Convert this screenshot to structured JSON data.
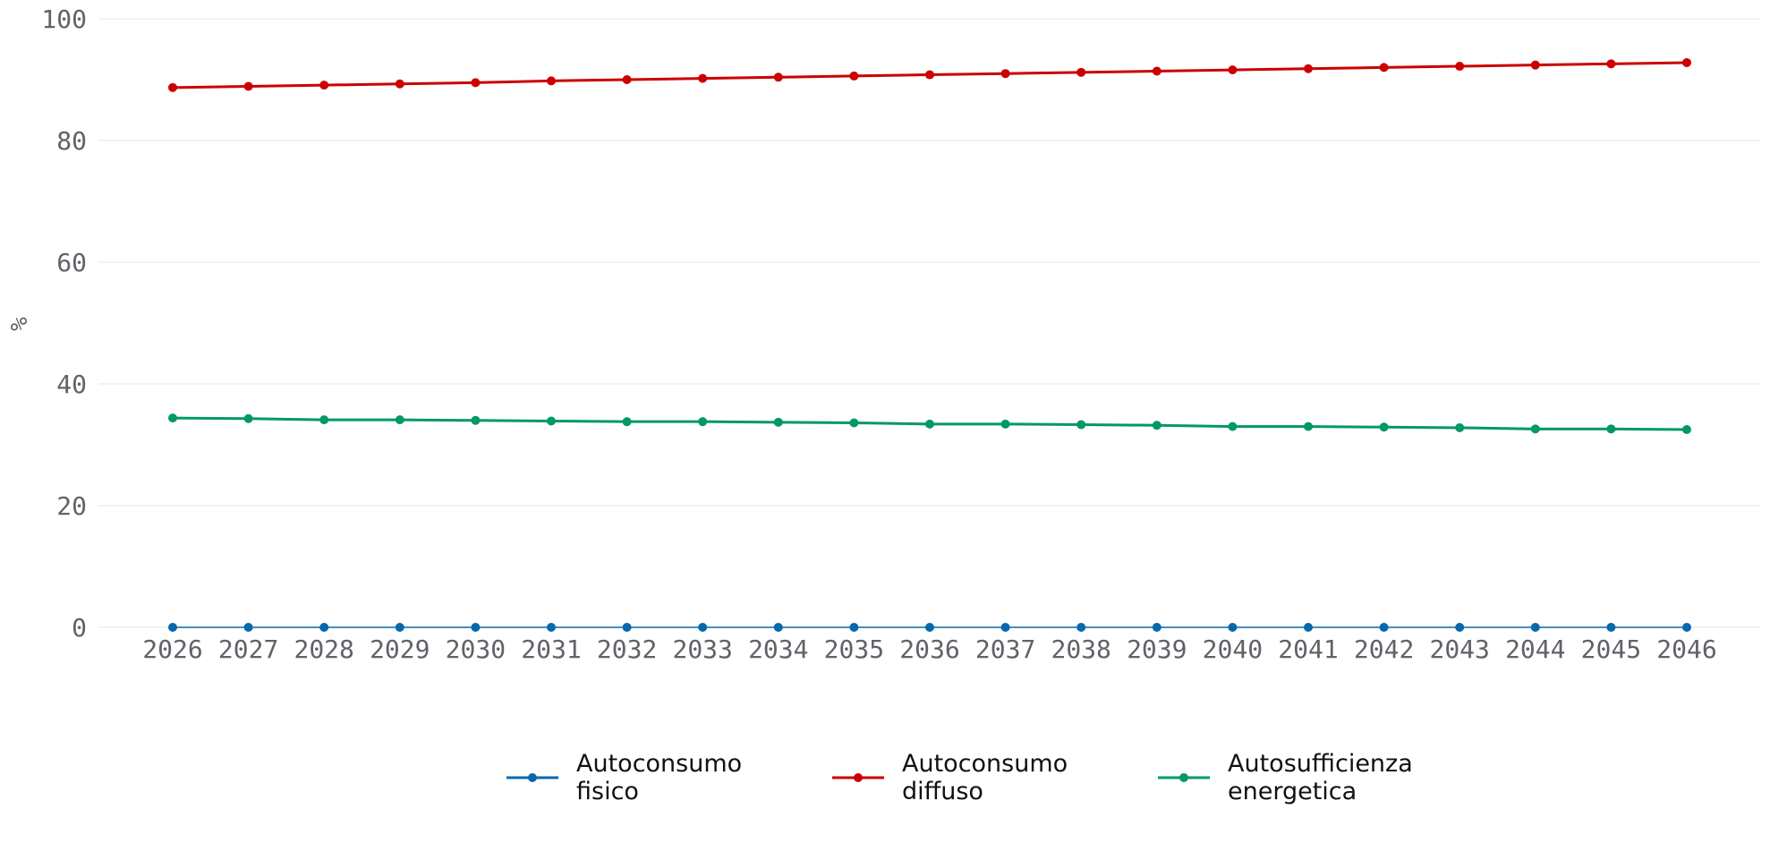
{
  "chart_data": {
    "type": "line",
    "title": "",
    "xlabel": "",
    "ylabel": "%",
    "ylim": [
      0,
      100
    ],
    "y_ticks": [
      "0",
      "20",
      "40",
      "60",
      "80",
      "100"
    ],
    "grid": "horizontal",
    "legend_position": "bottom-center",
    "x": [
      "2026",
      "2027",
      "2028",
      "2029",
      "2030",
      "2031",
      "2032",
      "2033",
      "2034",
      "2035",
      "2036",
      "2037",
      "2038",
      "2039",
      "2040",
      "2041",
      "2042",
      "2043",
      "2044",
      "2045",
      "2046"
    ],
    "series": [
      {
        "name": "Autoconsumo fisico",
        "color": "#0868ac",
        "values": [
          0,
          0,
          0,
          0,
          0,
          0,
          0,
          0,
          0,
          0,
          0,
          0,
          0,
          0,
          0,
          0,
          0,
          0,
          0,
          0,
          0
        ]
      },
      {
        "name": "Autoconsumo diffuso",
        "color": "#cc0000",
        "values": [
          88.7,
          88.9,
          89.1,
          89.3,
          89.5,
          89.8,
          90.0,
          90.2,
          90.4,
          90.6,
          90.8,
          91.0,
          91.2,
          91.4,
          91.6,
          91.8,
          92.0,
          92.2,
          92.4,
          92.6,
          92.8
        ]
      },
      {
        "name": "Autosufficienza energetica",
        "color": "#009966",
        "values": [
          34.4,
          34.3,
          34.1,
          34.1,
          34.0,
          33.9,
          33.8,
          33.8,
          33.7,
          33.6,
          33.4,
          33.4,
          33.3,
          33.2,
          33.0,
          33.0,
          32.9,
          32.8,
          32.6,
          32.6,
          32.5
        ]
      }
    ]
  },
  "legend": {
    "items": [
      {
        "line1": "Autoconsumo",
        "line2": "fisico",
        "color": "#0868ac"
      },
      {
        "line1": "Autoconsumo",
        "line2": "diffuso",
        "color": "#cc0000"
      },
      {
        "line1": "Autosufficienza",
        "line2": "energetica",
        "color": "#009966"
      }
    ]
  }
}
